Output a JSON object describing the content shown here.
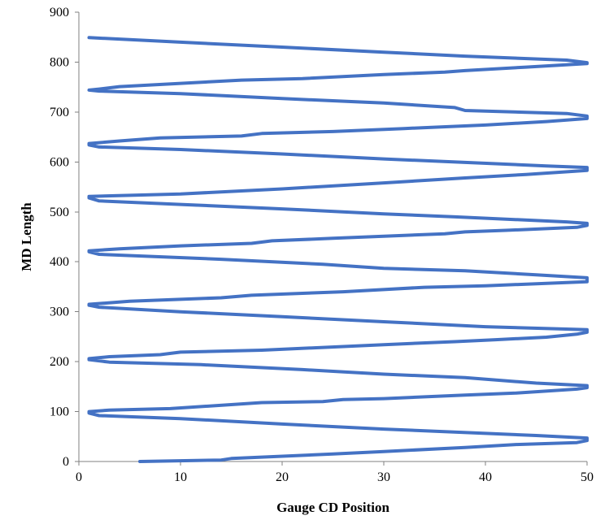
{
  "chart_data": {
    "type": "line",
    "xlabel": "Gauge CD Position",
    "ylabel": "MD Length",
    "xlim": [
      0,
      50
    ],
    "ylim": [
      0,
      900
    ],
    "x_ticks": [
      0,
      10,
      20,
      30,
      40,
      50
    ],
    "y_ticks": [
      0,
      100,
      200,
      300,
      400,
      500,
      600,
      700,
      800,
      900
    ],
    "grid": false,
    "legend": "none",
    "series": [
      {
        "color": "#4472C4",
        "points": [
          [
            6,
            0
          ],
          [
            14,
            3
          ],
          [
            15,
            6
          ],
          [
            25,
            15
          ],
          [
            30,
            20
          ],
          [
            38,
            28
          ],
          [
            43,
            34
          ],
          [
            49,
            38
          ],
          [
            50,
            42
          ],
          [
            50,
            47
          ],
          [
            45,
            52
          ],
          [
            30,
            65
          ],
          [
            20,
            75
          ],
          [
            10,
            86
          ],
          [
            2,
            92
          ],
          [
            1,
            97
          ],
          [
            1,
            100
          ],
          [
            3,
            103
          ],
          [
            9,
            106
          ],
          [
            18,
            118
          ],
          [
            24,
            120
          ],
          [
            26,
            124
          ],
          [
            30,
            126
          ],
          [
            38,
            133
          ],
          [
            43,
            137
          ],
          [
            49,
            145
          ],
          [
            50,
            148
          ],
          [
            50,
            152
          ],
          [
            45,
            157
          ],
          [
            38,
            168
          ],
          [
            30,
            175
          ],
          [
            22,
            184
          ],
          [
            12,
            194
          ],
          [
            3,
            199
          ],
          [
            1,
            204
          ],
          [
            1,
            206
          ],
          [
            3,
            210
          ],
          [
            8,
            214
          ],
          [
            10,
            219
          ],
          [
            18,
            223
          ],
          [
            30,
            234
          ],
          [
            37,
            240
          ],
          [
            41,
            244
          ],
          [
            46,
            249
          ],
          [
            49,
            255
          ],
          [
            50,
            259
          ],
          [
            50,
            264
          ],
          [
            40,
            270
          ],
          [
            30,
            280
          ],
          [
            20,
            290
          ],
          [
            10,
            300
          ],
          [
            2,
            309
          ],
          [
            1,
            313
          ],
          [
            1,
            315
          ],
          [
            5,
            321
          ],
          [
            14,
            328
          ],
          [
            17,
            333
          ],
          [
            26,
            340
          ],
          [
            34,
            349
          ],
          [
            40,
            352
          ],
          [
            50,
            360
          ],
          [
            50,
            363
          ],
          [
            50,
            368
          ],
          [
            45,
            374
          ],
          [
            38,
            382
          ],
          [
            30,
            387
          ],
          [
            24,
            395
          ],
          [
            14,
            405
          ],
          [
            2,
            415
          ],
          [
            1,
            420
          ],
          [
            1,
            422
          ],
          [
            4,
            426
          ],
          [
            10,
            432
          ],
          [
            17,
            437
          ],
          [
            19,
            442
          ],
          [
            25,
            447
          ],
          [
            32,
            453
          ],
          [
            36,
            456
          ],
          [
            38,
            460
          ],
          [
            42,
            463
          ],
          [
            49,
            469
          ],
          [
            50,
            473
          ],
          [
            50,
            477
          ],
          [
            48,
            480
          ],
          [
            37,
            490
          ],
          [
            30,
            496
          ],
          [
            20,
            506
          ],
          [
            10,
            515
          ],
          [
            2,
            522
          ],
          [
            1,
            528
          ],
          [
            1,
            531
          ],
          [
            10,
            536
          ],
          [
            20,
            546
          ],
          [
            30,
            558
          ],
          [
            38,
            568
          ],
          [
            44,
            575
          ],
          [
            50,
            583
          ],
          [
            50,
            585
          ],
          [
            50,
            589
          ],
          [
            46,
            592
          ],
          [
            38,
            599
          ],
          [
            30,
            606
          ],
          [
            20,
            616
          ],
          [
            10,
            625
          ],
          [
            2,
            630
          ],
          [
            1,
            634
          ],
          [
            1,
            637
          ],
          [
            4,
            642
          ],
          [
            8,
            648
          ],
          [
            16,
            652
          ],
          [
            18,
            657
          ],
          [
            25,
            661
          ],
          [
            32,
            667
          ],
          [
            40,
            674
          ],
          [
            46,
            681
          ],
          [
            50,
            687
          ],
          [
            50,
            692
          ],
          [
            48,
            697
          ],
          [
            38,
            703
          ],
          [
            37,
            709
          ],
          [
            30,
            718
          ],
          [
            20,
            727
          ],
          [
            10,
            737
          ],
          [
            2,
            742
          ],
          [
            1,
            744
          ],
          [
            2,
            746
          ],
          [
            4,
            751
          ],
          [
            16,
            764
          ],
          [
            22,
            767
          ],
          [
            30,
            775
          ],
          [
            36,
            780
          ],
          [
            38,
            783
          ],
          [
            44,
            790
          ],
          [
            50,
            797
          ],
          [
            50,
            799
          ],
          [
            48,
            804
          ],
          [
            38,
            812
          ],
          [
            30,
            820
          ],
          [
            20,
            830
          ],
          [
            10,
            840
          ],
          [
            1,
            849
          ]
        ]
      }
    ]
  }
}
